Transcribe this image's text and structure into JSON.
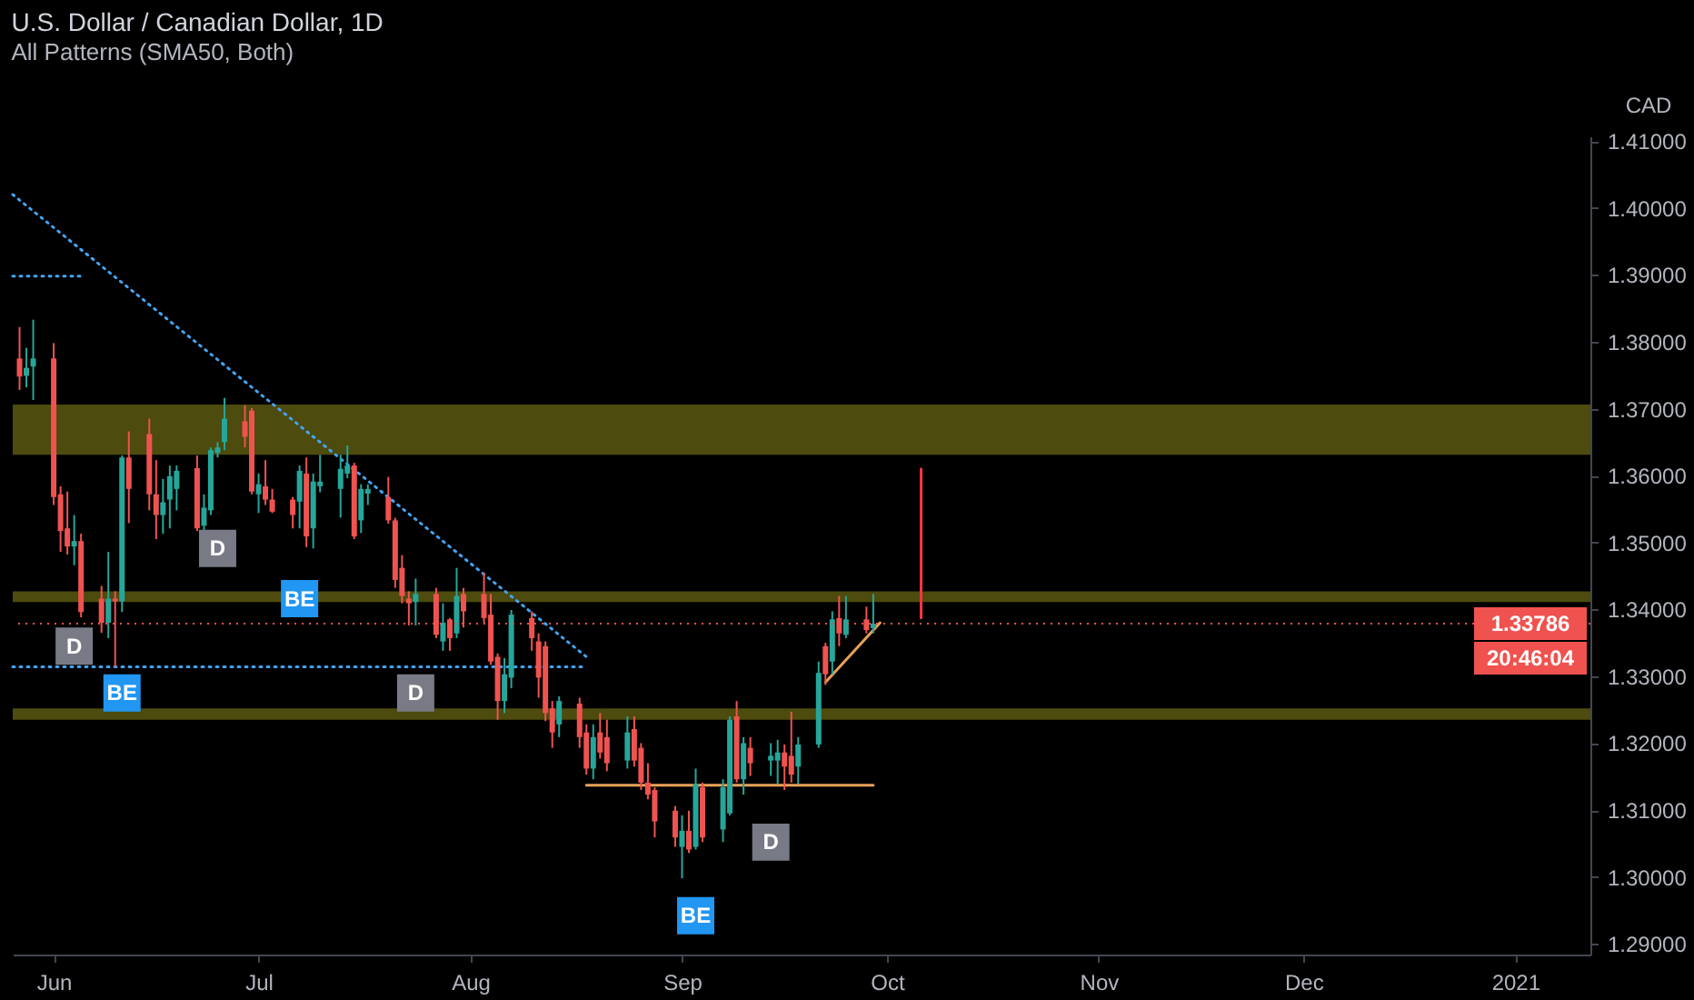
{
  "chart_data": {
    "type": "candlestick",
    "title": "U.S. Dollar / Canadian Dollar, 1D",
    "subtitle": "All Patterns (SMA50, Both)",
    "ylabel": "CAD",
    "x": [
      "2020-05-27",
      "2020-05-28",
      "2020-05-29",
      "2020-06-01",
      "2020-06-02",
      "2020-06-03",
      "2020-06-04",
      "2020-06-05",
      "2020-06-08",
      "2020-06-09",
      "2020-06-10",
      "2020-06-11",
      "2020-06-12",
      "2020-06-15",
      "2020-06-16",
      "2020-06-17",
      "2020-06-18",
      "2020-06-19",
      "2020-06-22",
      "2020-06-23",
      "2020-06-24",
      "2020-06-25",
      "2020-06-26",
      "2020-06-29",
      "2020-06-30",
      "2020-07-01",
      "2020-07-02",
      "2020-07-03",
      "2020-07-06",
      "2020-07-07",
      "2020-07-08",
      "2020-07-09",
      "2020-07-10",
      "2020-07-13",
      "2020-07-14",
      "2020-07-15",
      "2020-07-16",
      "2020-07-17",
      "2020-07-20",
      "2020-07-21",
      "2020-07-22",
      "2020-07-23",
      "2020-07-24",
      "2020-07-27",
      "2020-07-28",
      "2020-07-29",
      "2020-07-30",
      "2020-07-31",
      "2020-08-03",
      "2020-08-04",
      "2020-08-05",
      "2020-08-06",
      "2020-08-07",
      "2020-08-10",
      "2020-08-11",
      "2020-08-12",
      "2020-08-13",
      "2020-08-14",
      "2020-08-17",
      "2020-08-18",
      "2020-08-19",
      "2020-08-20",
      "2020-08-21",
      "2020-08-24",
      "2020-08-25",
      "2020-08-26",
      "2020-08-27",
      "2020-08-28",
      "2020-08-31",
      "2020-09-01",
      "2020-09-02",
      "2020-09-03",
      "2020-09-04",
      "2020-09-07",
      "2020-09-08",
      "2020-09-09",
      "2020-09-10",
      "2020-09-11",
      "2020-09-14",
      "2020-09-15",
      "2020-09-16",
      "2020-09-17",
      "2020-09-18",
      "2020-09-21",
      "2020-09-22",
      "2020-09-23",
      "2020-09-24",
      "2020-09-25",
      "2020-09-28",
      "2020-09-29"
    ],
    "ohlc": [
      [
        1.3775,
        1.3822,
        1.3728,
        1.3748
      ],
      [
        1.3749,
        1.3791,
        1.3732,
        1.3761
      ],
      [
        1.3763,
        1.3833,
        1.3713,
        1.3775
      ],
      [
        1.3775,
        1.3798,
        1.3556,
        1.3568
      ],
      [
        1.3572,
        1.3584,
        1.3486,
        1.3517
      ],
      [
        1.3521,
        1.3576,
        1.3482,
        1.3494
      ],
      [
        1.3494,
        1.3541,
        1.3466,
        1.3502
      ],
      [
        1.3502,
        1.3513,
        1.3388,
        1.3396
      ],
      [
        1.3416,
        1.3435,
        1.3365,
        1.338
      ],
      [
        1.338,
        1.3486,
        1.3357,
        1.3416
      ],
      [
        1.3416,
        1.3427,
        1.3314,
        1.3412
      ],
      [
        1.3412,
        1.363,
        1.3396,
        1.3627
      ],
      [
        1.3627,
        1.3666,
        1.3529,
        1.358
      ],
      [
        1.3662,
        1.3685,
        1.3548,
        1.3572
      ],
      [
        1.3572,
        1.3623,
        1.3505,
        1.3541
      ],
      [
        1.3541,
        1.3595,
        1.3513,
        1.356
      ],
      [
        1.3564,
        1.3615,
        1.3521,
        1.3599
      ],
      [
        1.358,
        1.3615,
        1.3548,
        1.3607
      ],
      [
        1.3611,
        1.363,
        1.3517,
        1.3521
      ],
      [
        1.3525,
        1.3572,
        1.3517,
        1.3552
      ],
      [
        1.3548,
        1.3642,
        1.3541,
        1.3638
      ],
      [
        1.3634,
        1.365,
        1.3627,
        1.3642
      ],
      [
        1.365,
        1.3716,
        1.3638,
        1.3685
      ],
      [
        1.3681,
        1.3705,
        1.3642,
        1.3658
      ],
      [
        1.3697,
        1.3701,
        1.3572,
        1.3576
      ],
      [
        1.3572,
        1.3603,
        1.3544,
        1.3587
      ],
      [
        1.3584,
        1.3623,
        1.3556,
        1.3564
      ],
      [
        1.3564,
        1.358,
        1.3544,
        1.3546
      ],
      [
        1.3564,
        1.3568,
        1.3521,
        1.3541
      ],
      [
        1.3561,
        1.3615,
        1.3521,
        1.3607
      ],
      [
        1.3603,
        1.3627,
        1.3493,
        1.3509
      ],
      [
        1.3521,
        1.3603,
        1.3491,
        1.3591
      ],
      [
        1.3584,
        1.3631,
        1.3575,
        1.3591
      ],
      [
        1.358,
        1.3631,
        1.3537,
        1.361
      ],
      [
        1.3603,
        1.3645,
        1.3596,
        1.3615
      ],
      [
        1.3615,
        1.3619,
        1.3505,
        1.3509
      ],
      [
        1.3533,
        1.3587,
        1.3514,
        1.358
      ],
      [
        1.3573,
        1.3587,
        1.3556,
        1.358
      ],
      [
        1.3568,
        1.3598,
        1.3528,
        1.3533
      ],
      [
        1.3533,
        1.3537,
        1.3432,
        1.3444
      ],
      [
        1.3462,
        1.3481,
        1.3409,
        1.342
      ],
      [
        1.3416,
        1.3427,
        1.3376,
        1.3409
      ],
      [
        1.3411,
        1.3446,
        1.3376,
        1.3423
      ],
      [
        1.3423,
        1.3432,
        1.3357,
        1.3362
      ],
      [
        1.3352,
        1.3409,
        1.3338,
        1.338
      ],
      [
        1.3385,
        1.3387,
        1.3338,
        1.3357
      ],
      [
        1.3364,
        1.3462,
        1.3357,
        1.342
      ],
      [
        1.3423,
        1.3432,
        1.3373,
        1.3397
      ],
      [
        1.3423,
        1.3455,
        1.338,
        1.3387
      ],
      [
        1.3392,
        1.3423,
        1.3317,
        1.3322
      ],
      [
        1.3329,
        1.3334,
        1.3235,
        1.3263
      ],
      [
        1.3263,
        1.3327,
        1.3245,
        1.3303
      ],
      [
        1.3298,
        1.3399,
        1.3282,
        1.3392
      ],
      [
        1.3387,
        1.3397,
        1.3338,
        1.3357
      ],
      [
        1.3352,
        1.3364,
        1.3268,
        1.3298
      ],
      [
        1.3345,
        1.3352,
        1.3233,
        1.3245
      ],
      [
        1.3252,
        1.3263,
        1.3193,
        1.3216
      ],
      [
        1.3228,
        1.327,
        1.3209,
        1.3263
      ],
      [
        1.3259,
        1.3268,
        1.3193,
        1.3209
      ],
      [
        1.3216,
        1.3228,
        1.3153,
        1.3162
      ],
      [
        1.3162,
        1.3228,
        1.3146,
        1.3209
      ],
      [
        1.3216,
        1.3245,
        1.3177,
        1.3186
      ],
      [
        1.3209,
        1.3235,
        1.3158,
        1.317
      ],
      [
        1.3174,
        1.324,
        1.3162,
        1.3216
      ],
      [
        1.3221,
        1.324,
        1.3165,
        1.3174
      ],
      [
        1.3193,
        1.32,
        1.313,
        1.3141
      ],
      [
        1.3141,
        1.317,
        1.3116,
        1.3123
      ],
      [
        1.313,
        1.3134,
        1.3059,
        1.3083
      ],
      [
        1.3099,
        1.3106,
        1.3045,
        1.3059
      ],
      [
        1.3045,
        1.3092,
        1.2998,
        1.3069
      ],
      [
        1.3069,
        1.3099,
        1.3036,
        1.3041
      ],
      [
        1.3045,
        1.3162,
        1.3041,
        1.3139
      ],
      [
        1.3134,
        1.3141,
        1.3052,
        1.3059
      ],
      [
        1.3071,
        1.3146,
        1.3052,
        1.3134
      ],
      [
        1.3095,
        1.324,
        1.3092,
        1.3235
      ],
      [
        1.324,
        1.3263,
        1.3141,
        1.3146
      ],
      [
        1.3146,
        1.3209,
        1.3123,
        1.32
      ],
      [
        1.3193,
        1.3209,
        1.3151,
        1.317
      ],
      [
        1.3174,
        1.32,
        1.3151,
        1.3181
      ],
      [
        1.3174,
        1.3205,
        1.3139,
        1.3186
      ],
      [
        1.3186,
        1.3198,
        1.313,
        1.3165
      ],
      [
        1.3181,
        1.3247,
        1.3141,
        1.3153
      ],
      [
        1.3165,
        1.3209,
        1.3139,
        1.3198
      ],
      [
        1.3198,
        1.3322,
        1.3193,
        1.3305
      ],
      [
        1.3345,
        1.335,
        1.3287,
        1.3303
      ],
      [
        1.3322,
        1.3397,
        1.3303,
        1.3385
      ],
      [
        1.3387,
        1.342,
        1.3345,
        1.3364
      ],
      [
        1.3362,
        1.342,
        1.3357,
        1.3385
      ],
      [
        1.3385,
        1.3404,
        1.3364,
        1.3369
      ],
      [
        1.3372,
        1.3423,
        1.3364,
        1.33786
      ]
    ],
    "colors": [
      "#ef5350",
      "#26a69a",
      "#26a69a",
      "#ef5350",
      "#ef5350",
      "#ef5350",
      "#26a69a",
      "#ef5350",
      "#ef5350",
      "#26a69a",
      "#ef5350",
      "#26a69a",
      "#ef5350",
      "#ef5350",
      "#ef5350",
      "#26a69a",
      "#26a69a",
      "#26a69a",
      "#ef5350",
      "#26a69a",
      "#26a69a",
      "#26a69a",
      "#26a69a",
      "#ef5350",
      "#ef5350",
      "#26a69a",
      "#ef5350",
      "#ef5350",
      "#ef5350",
      "#26a69a",
      "#ef5350",
      "#26a69a",
      "#26a69a",
      "#26a69a",
      "#26a69a",
      "#ef5350",
      "#26a69a",
      "#26a69a",
      "#ef5350",
      "#ef5350",
      "#ef5350",
      "#ef5350",
      "#26a69a",
      "#ef5350",
      "#26a69a",
      "#ef5350",
      "#26a69a",
      "#ef5350",
      "#ef5350",
      "#ef5350",
      "#ef5350",
      "#26a69a",
      "#26a69a",
      "#ef5350",
      "#ef5350",
      "#ef5350",
      "#ef5350",
      "#26a69a",
      "#ef5350",
      "#ef5350",
      "#26a69a",
      "#ef5350",
      "#ef5350",
      "#26a69a",
      "#ef5350",
      "#ef5350",
      "#ef5350",
      "#ef5350",
      "#ef5350",
      "#26a69a",
      "#ef5350",
      "#26a69a",
      "#ef5350",
      "#26a69a",
      "#26a69a",
      "#ef5350",
      "#26a69a",
      "#ef5350",
      "#26a69a",
      "#26a69a",
      "#ef5350",
      "#ef5350",
      "#26a69a",
      "#26a69a",
      "#ef5350",
      "#26a69a",
      "#ef5350",
      "#26a69a",
      "#ef5350",
      "#26a69a"
    ],
    "series": [
      {
        "type": "line",
        "color": "#42a5f5",
        "line_style": "dotted",
        "x": [
          "2020-05-26",
          "2020-08-18"
        ],
        "values": [
          1.402,
          1.3329
        ]
      },
      {
        "type": "line",
        "color": "#42a5f5",
        "line_style": "dotted",
        "x": [
          "2020-05-26",
          "2020-06-05"
        ],
        "values": [
          1.3898,
          1.3898
        ]
      },
      {
        "type": "line",
        "color": "#42a5f5",
        "line_style": "dotted",
        "x": [
          "2020-05-26",
          "2020-08-18"
        ],
        "values": [
          1.3314,
          1.3314
        ]
      },
      {
        "type": "line",
        "color": "#e8a15a",
        "line_style": "solid",
        "x": [
          "2020-08-18",
          "2020-09-29"
        ],
        "values": [
          1.3137,
          1.3137
        ]
      },
      {
        "type": "line",
        "color": "#e8a15a",
        "line_style": "solid",
        "x": [
          "2020-09-22",
          "2020-09-30"
        ],
        "values": [
          1.3291,
          1.338
        ]
      },
      {
        "type": "line",
        "color": "#f23645",
        "line_style": "solid",
        "x": [
          "2020-10-06",
          "2020-10-06"
        ],
        "values": [
          1.3387,
          1.361
        ]
      },
      {
        "type": "scatter",
        "name": "D",
        "color": "#787b86",
        "marker": "square",
        "x": [
          "2020-06-04",
          "2020-06-25",
          "2020-07-24",
          "2020-09-14"
        ],
        "values": [
          1.3345,
          1.3491,
          1.3275,
          1.3052
        ]
      },
      {
        "type": "scatter",
        "name": "BE",
        "color": "#2196f3",
        "marker": "square",
        "x": [
          "2020-06-11",
          "2020-07-07",
          "2020-09-03"
        ],
        "values": [
          1.3275,
          1.3416,
          1.2942
        ]
      }
    ],
    "bands": [
      {
        "axis": "y",
        "from": 1.3631,
        "to": 1.3706,
        "color": "#4d4b0d"
      },
      {
        "axis": "y",
        "from": 1.3411,
        "to": 1.3427,
        "color": "#4d4b0d"
      },
      {
        "axis": "y",
        "from": 1.3235,
        "to": 1.3252,
        "color": "#4d4b0d"
      }
    ],
    "ref_lines": [
      {
        "axis": "y",
        "value": 1.33786,
        "label": "1.33786",
        "color": "#f0524f",
        "line_style": "dotted"
      }
    ],
    "annotations": [
      "20:46:04"
    ],
    "xlim": [
      "2020-05-26",
      "2021-01-12"
    ],
    "xticks": [
      {
        "value": "2020-06-01",
        "label": "Jun"
      },
      {
        "value": "2020-07-01",
        "label": "Jul"
      },
      {
        "value": "2020-08-01",
        "label": "Aug"
      },
      {
        "value": "2020-09-01",
        "label": "Sep"
      },
      {
        "value": "2020-10-01",
        "label": "Oct"
      },
      {
        "value": "2020-11-01",
        "label": "Nov"
      },
      {
        "value": "2020-12-01",
        "label": "Dec"
      },
      {
        "value": "2021-01-01",
        "label": "2021"
      }
    ],
    "ylim": [
      1.2884,
      1.4107
    ],
    "yticks": [
      {
        "value": 1.29,
        "label": "1.29000"
      },
      {
        "value": 1.3,
        "label": "1.30000"
      },
      {
        "value": 1.31,
        "label": "1.31000"
      },
      {
        "value": 1.32,
        "label": "1.32000"
      },
      {
        "value": 1.33,
        "label": "1.33000"
      },
      {
        "value": 1.34,
        "label": "1.34000"
      },
      {
        "value": 1.35,
        "label": "1.35000"
      },
      {
        "value": 1.36,
        "label": "1.36000"
      },
      {
        "value": 1.37,
        "label": "1.37000"
      },
      {
        "value": 1.38,
        "label": "1.38000"
      },
      {
        "value": 1.39,
        "label": "1.39000"
      },
      {
        "value": 1.4,
        "label": "1.40000"
      },
      {
        "value": 1.41,
        "label": "1.41000"
      }
    ]
  }
}
